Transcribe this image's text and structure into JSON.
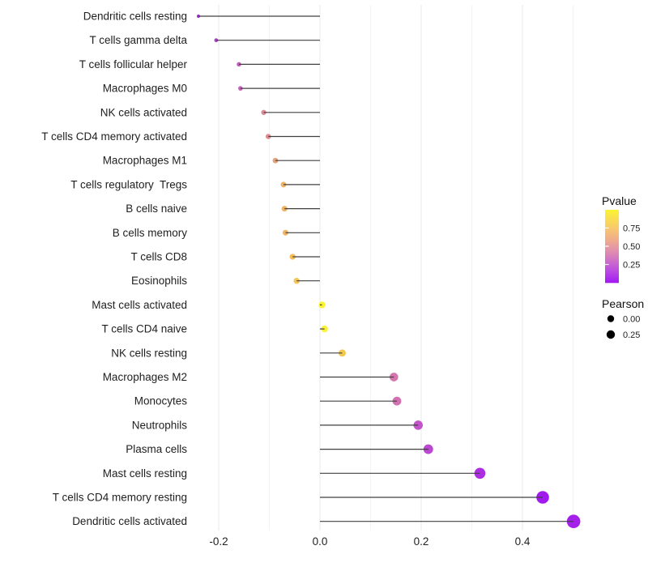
{
  "chart_data": {
    "type": "lollipop",
    "title": "",
    "xlabel": "",
    "ylabel": "",
    "xlim": [
      -0.252,
      0.53
    ],
    "x_major_ticks": [
      -0.2,
      0.0,
      0.2,
      0.4
    ],
    "x_tick_labels": [
      "-0.2",
      "0.0",
      "0.2",
      "0.4"
    ],
    "x_minor_gridlines": [
      -0.1,
      0.1,
      0.3,
      0.5
    ],
    "grid": "vertical-gridlines-only",
    "background_color": "#FFFFFF",
    "stem_color": "#404040",
    "baseline_value": 0.0,
    "points": [
      {
        "label": "Dendritic cells resting",
        "pearson": -0.24,
        "color": "#9F35D2"
      },
      {
        "label": "T cells gamma delta",
        "pearson": -0.205,
        "color": "#AC42C9"
      },
      {
        "label": "T cells follicular helper",
        "pearson": -0.16,
        "color": "#C45BBE"
      },
      {
        "label": "Macrophages M0",
        "pearson": -0.157,
        "color": "#C75FBC"
      },
      {
        "label": "NK cells activated",
        "pearson": -0.111,
        "color": "#DE8795"
      },
      {
        "label": "T cells CD4 memory activated",
        "pearson": -0.102,
        "color": "#E08D90"
      },
      {
        "label": "Macrophages M1",
        "pearson": -0.088,
        "color": "#E6A07B"
      },
      {
        "label": "T cells regulatory  Tregs",
        "pearson": -0.072,
        "color": "#EFB366"
      },
      {
        "label": "B cells naive",
        "pearson": -0.07,
        "color": "#EFB365"
      },
      {
        "label": "B cells memory",
        "pearson": -0.068,
        "color": "#F0B463"
      },
      {
        "label": "T cells CD8",
        "pearson": -0.054,
        "color": "#F2BD59"
      },
      {
        "label": "Eosinophils",
        "pearson": -0.046,
        "color": "#F3C353"
      },
      {
        "label": "Mast cells activated",
        "pearson": 0.004,
        "color": "#FAF235"
      },
      {
        "label": "T cells CD4 naive",
        "pearson": 0.009,
        "color": "#FAF233"
      },
      {
        "label": "NK cells resting",
        "pearson": 0.044,
        "color": "#F3C84E"
      },
      {
        "label": "Macrophages M2",
        "pearson": 0.146,
        "color": "#D476AD"
      },
      {
        "label": "Monocytes",
        "pearson": 0.152,
        "color": "#D072B0"
      },
      {
        "label": "Neutrophils",
        "pearson": 0.194,
        "color": "#C253C8"
      },
      {
        "label": "Plasma cells",
        "pearson": 0.214,
        "color": "#BA46D2"
      },
      {
        "label": "Mast cells resting",
        "pearson": 0.316,
        "color": "#AC2EE0"
      },
      {
        "label": "T cells CD4 memory resting",
        "pearson": 0.44,
        "color": "#A21BEE"
      },
      {
        "label": "Dendritic cells activated",
        "pearson": 0.501,
        "color": "#A520E8"
      }
    ],
    "legend": {
      "pvalue": {
        "title": "Pvalue",
        "ticks": [
          {
            "value": 0.75,
            "label": "0.75"
          },
          {
            "value": 0.5,
            "label": "0.50"
          },
          {
            "value": 0.25,
            "label": "0.25"
          }
        ],
        "gradient_stops": [
          {
            "t": 0.0,
            "color": "#A21AF2"
          },
          {
            "t": 0.1,
            "color": "#B23BE8"
          },
          {
            "t": 0.25,
            "color": "#C763D2"
          },
          {
            "t": 0.4,
            "color": "#DC87B4"
          },
          {
            "t": 0.5,
            "color": "#E79BA0"
          },
          {
            "t": 0.6,
            "color": "#EFAE8A"
          },
          {
            "t": 0.75,
            "color": "#F8C96E"
          },
          {
            "t": 0.9,
            "color": "#FAE14B"
          },
          {
            "t": 1.0,
            "color": "#FAF332"
          }
        ]
      },
      "pearson": {
        "title": "Pearson",
        "items": [
          {
            "label": "0.00",
            "radius": 4.2
          },
          {
            "label": "0.25",
            "radius": 5.2
          }
        ],
        "dot_color": "#000000"
      }
    }
  }
}
